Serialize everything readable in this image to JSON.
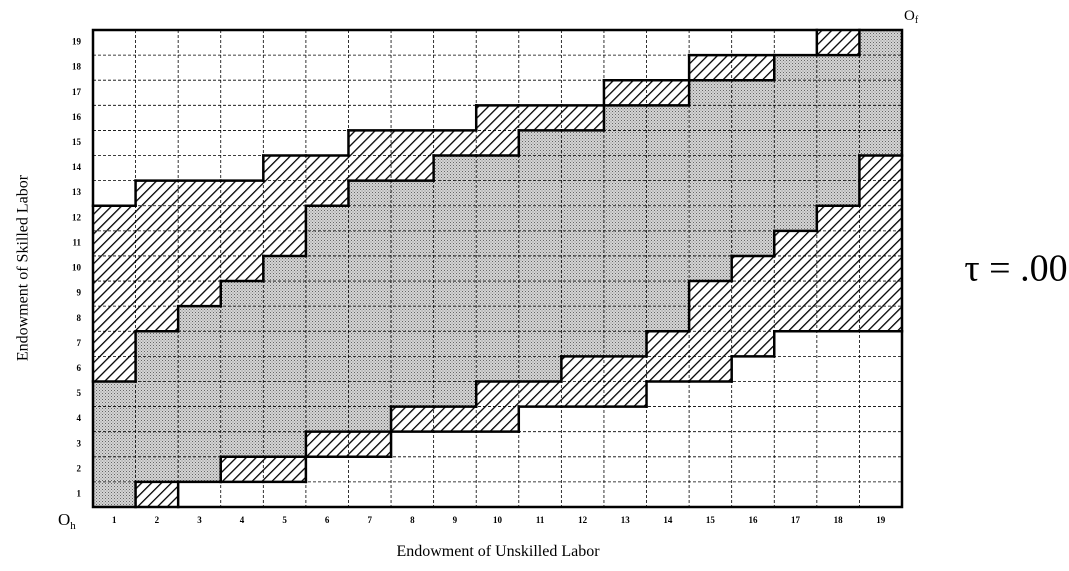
{
  "x_axis": {
    "label": "Endowment of Unskilled Labor",
    "ticks": [
      1,
      2,
      3,
      4,
      5,
      6,
      7,
      8,
      9,
      10,
      11,
      12,
      13,
      14,
      15,
      16,
      17,
      18,
      19
    ]
  },
  "y_axis": {
    "label": "Endowment of Skilled Labor",
    "ticks": [
      1,
      2,
      3,
      4,
      5,
      6,
      7,
      8,
      9,
      10,
      11,
      12,
      13,
      14,
      15,
      16,
      17,
      18,
      19
    ]
  },
  "origin_home": {
    "text": "O",
    "subscript": "h"
  },
  "origin_foreign": {
    "text": "O",
    "subscript": "f"
  },
  "annotation": "τ = .00"
}
